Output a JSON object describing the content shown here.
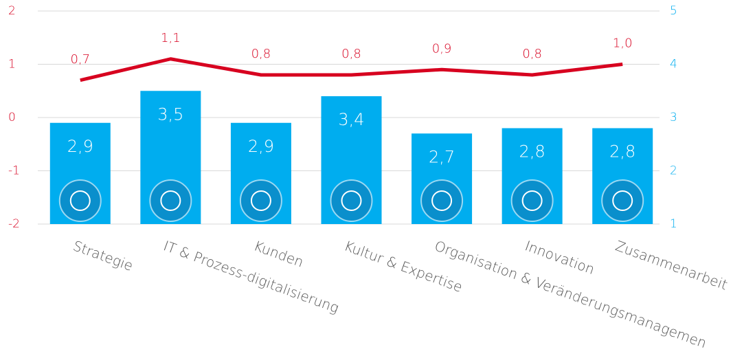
{
  "chart_data": {
    "type": "bar",
    "categories": [
      "Strategie",
      "IT & Prozess-digitalisierung",
      "Kunden",
      "Kultur & Expertise",
      "Organisation & Veränderungsmanagemen",
      "Innovation",
      "Zusammenarbeit"
    ],
    "series": [
      {
        "type": "bar",
        "axis": "y2",
        "color": "#00adef",
        "values": [
          2.9,
          3.5,
          2.9,
          3.4,
          2.7,
          2.8,
          2.8
        ],
        "value_labels": [
          "2,9",
          "3,5",
          "2,9",
          "3,4",
          "2,7",
          "2,8",
          "2,8"
        ]
      },
      {
        "type": "line",
        "axis": "y",
        "color": "#d7001f",
        "values": [
          0.7,
          1.1,
          0.8,
          0.8,
          0.9,
          0.8,
          1.0
        ],
        "value_labels": [
          "0,7",
          "1,1",
          "0,8",
          "0,8",
          "0,9",
          "0,8",
          "1,0"
        ]
      }
    ],
    "ylim": [
      -2,
      2
    ],
    "yticks": [
      -2,
      -1,
      0,
      1,
      2
    ],
    "y2lim": [
      1,
      5
    ],
    "y2ticks": [
      1,
      2,
      3,
      4,
      5
    ],
    "grid": true
  }
}
